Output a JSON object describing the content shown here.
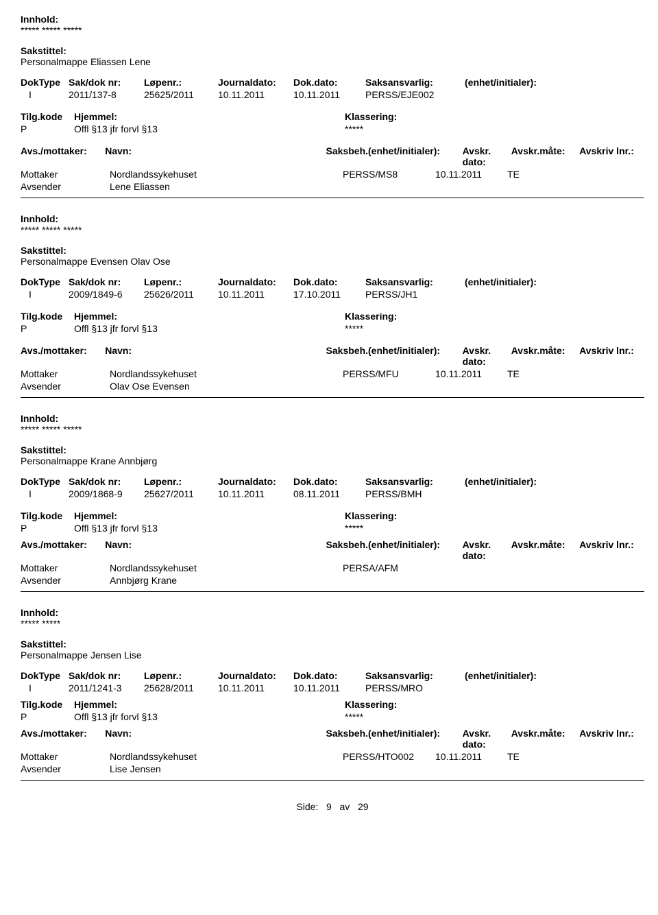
{
  "labels": {
    "innhold": "Innhold:",
    "sakstittel": "Sakstittel:",
    "doktype": "DokType",
    "sakdok": "Sak/dok nr:",
    "lopenr": "Løpenr.:",
    "journaldato": "Journaldato:",
    "dokdato": "Dok.dato:",
    "saksansvarlig": "Saksansvarlig:",
    "enhet": "(enhet/initialer):",
    "tilgkode": "Tilg.kode",
    "hjemmel": "Hjemmel:",
    "klassering": "Klassering:",
    "avsmottaker": "Avs./mottaker:",
    "navn": "Navn:",
    "saksbeh": "Saksbeh.(enhet/initialer):",
    "avskrdato": "Avskr. dato:",
    "avskrmate": "Avskr.måte:",
    "avskrivlnr": "Avskriv lnr.:",
    "mottaker": "Mottaker",
    "avsender": "Avsender"
  },
  "records": [
    {
      "innhold": "***** ***** *****",
      "sakstittel": "Personalmappe Eliassen Lene",
      "doktype": "I",
      "sakdok": "2011/137-8",
      "lopenr": "25625/2011",
      "journaldato": "10.11.2011",
      "dokdato": "10.11.2011",
      "saksansvarlig": "PERSS/EJE002",
      "tilgkode": "P",
      "hjemmel": "Offl §13 jfr forvl §13",
      "klassering": "*****",
      "mottaker_navn": "Nordlandssykehuset",
      "saksbeh": "PERSS/MS8",
      "avskrdato": "10.11.2011",
      "avskrmate": "TE",
      "avsender_navn": "Lene Eliassen",
      "show_avs_headers": true
    },
    {
      "innhold": "***** ***** *****",
      "sakstittel": "Personalmappe Evensen Olav Ose",
      "doktype": "I",
      "sakdok": "2009/1849-6",
      "lopenr": "25626/2011",
      "journaldato": "10.11.2011",
      "dokdato": "17.10.2011",
      "saksansvarlig": "PERSS/JH1",
      "tilgkode": "P",
      "hjemmel": "Offl §13 jfr forvl §13",
      "klassering": "*****",
      "mottaker_navn": "Nordlandssykehuset",
      "saksbeh": "PERSS/MFU",
      "avskrdato": "10.11.2011",
      "avskrmate": "TE",
      "avsender_navn": "Olav Ose Evensen",
      "show_avs_headers": true
    },
    {
      "innhold": "***** ***** *****",
      "sakstittel": "Personalmappe Krane Annbjørg",
      "doktype": "I",
      "sakdok": "2009/1868-9",
      "lopenr": "25627/2011",
      "journaldato": "10.11.2011",
      "dokdato": "08.11.2011",
      "saksansvarlig": "PERSS/BMH",
      "tilgkode": "P",
      "hjemmel": "Offl §13 jfr forvl §13",
      "klassering": "*****",
      "mottaker_navn": "Nordlandssykehuset",
      "saksbeh": "PERSA/AFM",
      "avskrdato": "",
      "avskrmate": "",
      "avsender_navn": "Annbjørg Krane",
      "show_avs_headers": true
    },
    {
      "innhold": "***** *****",
      "sakstittel": "Personalmappe Jensen Lise",
      "doktype": "I",
      "sakdok": "2011/1241-3",
      "lopenr": "25628/2011",
      "journaldato": "10.11.2011",
      "dokdato": "10.11.2011",
      "saksansvarlig": "PERSS/MRO",
      "tilgkode": "P",
      "hjemmel": "Offl §13 jfr forvl §13",
      "klassering": "*****",
      "mottaker_navn": "Nordlandssykehuset",
      "saksbeh": "PERSS/HTO002",
      "avskrdato": "10.11.2011",
      "avskrmate": "TE",
      "avsender_navn": "Lise Jensen",
      "show_avs_headers": true
    }
  ],
  "footer": {
    "side_label": "Side:",
    "page": "9",
    "av": "av",
    "total": "29"
  }
}
